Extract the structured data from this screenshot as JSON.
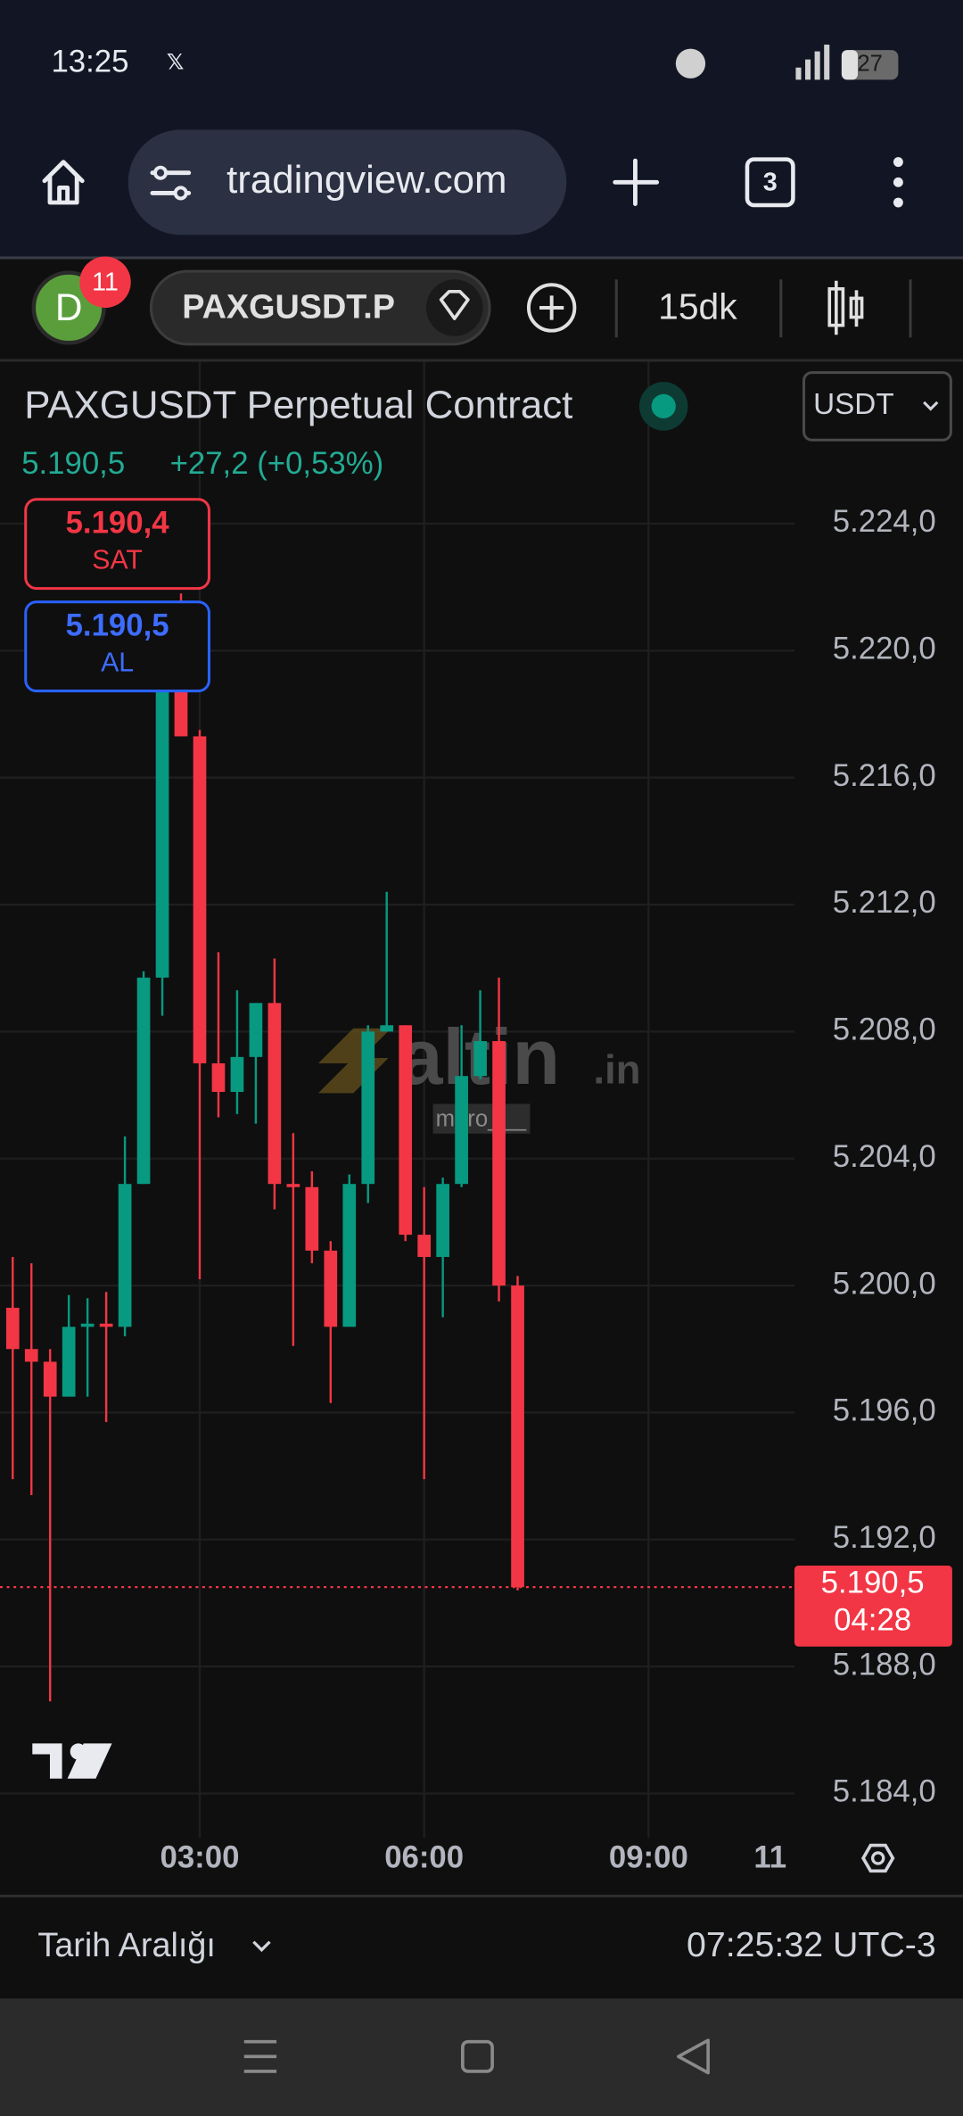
{
  "status_bar": {
    "time": "13:25",
    "battery": "27"
  },
  "browser": {
    "url": "tradingview.com",
    "tab_count": "3"
  },
  "toolbar": {
    "avatar": "D",
    "notifications": "11",
    "symbol": "PAXGUSDT.P",
    "interval": "15dk"
  },
  "chart_data": {
    "type": "candlestick",
    "title": "PAXGUSDT Perpetual Contract",
    "last_price_text": "5.190,5",
    "change_text": "+27,2 (+0,53%)",
    "currency": "USDT",
    "sell": {
      "price": "5.190,4",
      "label": "SAT"
    },
    "buy": {
      "price": "5.190,5",
      "label": "AL"
    },
    "x": [
      0.5,
      0.75,
      1,
      1.25,
      1.5,
      1.75,
      2,
      2.25,
      2.5,
      2.75,
      3,
      3.25,
      3.5,
      3.75,
      4,
      4.25,
      4.5,
      4.75,
      5,
      5.25,
      5.5,
      5.75,
      6,
      6.25,
      6.5,
      6.75,
      7,
      7.25
    ],
    "open": [
      5199.3,
      5198.0,
      5197.6,
      5196.5,
      5198.7,
      5198.8,
      5198.7,
      5203.2,
      5209.7,
      5218.7,
      5217.3,
      5207.0,
      5206.1,
      5207.2,
      5208.9,
      5203.2,
      5203.1,
      5201.1,
      5198.7,
      5203.2,
      5208.0,
      5208.2,
      5201.6,
      5200.9,
      5203.2,
      5206.6,
      5207.7,
      5200.0
    ],
    "high": [
      5200.9,
      5200.7,
      5198.0,
      5199.7,
      5199.6,
      5199.8,
      5204.7,
      5209.9,
      5219.2,
      5221.8,
      5217.5,
      5210.5,
      5209.3,
      5208.9,
      5210.3,
      5204.8,
      5203.6,
      5201.4,
      5203.5,
      5208.2,
      5212.4,
      5208.2,
      5203.1,
      5203.4,
      5208.2,
      5209.3,
      5209.7,
      5200.3
    ],
    "low": [
      5193.9,
      5193.4,
      5186.9,
      5196.5,
      5196.5,
      5195.7,
      5198.4,
      5203.2,
      5208.5,
      5217.3,
      5200.2,
      5205.3,
      5205.4,
      5205.1,
      5202.4,
      5198.1,
      5200.7,
      5196.3,
      5198.7,
      5202.6,
      5208.0,
      5201.4,
      5193.9,
      5199.0,
      5203.1,
      5206.5,
      5199.5,
      5190.4
    ],
    "close": [
      5198.0,
      5197.6,
      5196.5,
      5198.7,
      5198.8,
      5198.7,
      5203.2,
      5209.7,
      5218.7,
      5217.3,
      5207.0,
      5206.1,
      5207.2,
      5208.9,
      5203.2,
      5203.1,
      5201.1,
      5198.7,
      5203.2,
      5208.0,
      5208.2,
      5201.6,
      5200.9,
      5203.2,
      5206.6,
      5207.7,
      5200.0,
      5190.5
    ],
    "up_color": "#089981",
    "down_color": "#f23645",
    "xlim": [
      0.33,
      10.95
    ],
    "xticks": [
      {
        "value": 3,
        "label": "03:00"
      },
      {
        "value": 6,
        "label": "06:00"
      },
      {
        "value": 9,
        "label": "09:00"
      }
    ],
    "day_label": "11",
    "ylim": [
      5182.6,
      5229.1
    ],
    "yticks": [
      {
        "value": 5184,
        "label": "5.184,0"
      },
      {
        "value": 5188,
        "label": "5.188,0"
      },
      {
        "value": 5192,
        "label": "5.192,0"
      },
      {
        "value": 5196,
        "label": "5.196,0"
      },
      {
        "value": 5200,
        "label": "5.200,0"
      },
      {
        "value": 5204,
        "label": "5.204,0"
      },
      {
        "value": 5208,
        "label": "5.208,0"
      },
      {
        "value": 5212,
        "label": "5.212,0"
      },
      {
        "value": 5216,
        "label": "5.216,0"
      },
      {
        "value": 5220,
        "label": "5.220,0"
      },
      {
        "value": 5224,
        "label": "5.224,0"
      }
    ],
    "grid": true,
    "last_price": {
      "value": 5190.5,
      "label": "5.190,5"
    },
    "countdown": "04:28",
    "watermark": "altin",
    "watermark_suffix": ".in",
    "watermark_user": "muro___"
  },
  "footer": {
    "range": "Tarih Aralığı",
    "clock": "07:25:32 UTC-3"
  }
}
